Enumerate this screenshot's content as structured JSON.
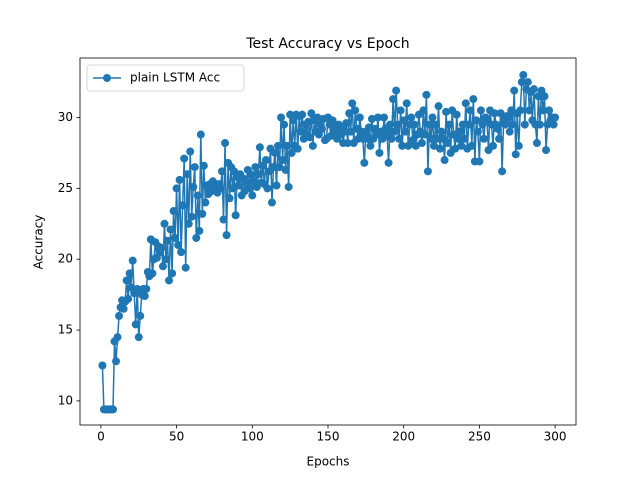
{
  "chart_data": {
    "type": "line",
    "title": "Test Accuracy vs Epoch",
    "xlabel": "Epochs",
    "ylabel": "Accuracy",
    "x": [
      1,
      2,
      3,
      4,
      5,
      6,
      7,
      8,
      9,
      10,
      11,
      12,
      13,
      14,
      15,
      16,
      17,
      18,
      19,
      20,
      21,
      22,
      23,
      24,
      25,
      26,
      27,
      28,
      29,
      30,
      31,
      32,
      33,
      34,
      35,
      36,
      37,
      38,
      39,
      40,
      41,
      42,
      43,
      44,
      45,
      46,
      47,
      48,
      49,
      50,
      51,
      52,
      53,
      54,
      55,
      56,
      57,
      58,
      59,
      60,
      61,
      62,
      63,
      64,
      65,
      66,
      67,
      68,
      69,
      70,
      71,
      72,
      73,
      74,
      75,
      76,
      77,
      78,
      79,
      80,
      81,
      82,
      83,
      84,
      85,
      86,
      87,
      88,
      89,
      90,
      91,
      92,
      93,
      94,
      95,
      96,
      97,
      98,
      99,
      100,
      101,
      102,
      103,
      104,
      105,
      106,
      107,
      108,
      109,
      110,
      111,
      112,
      113,
      114,
      115,
      116,
      117,
      118,
      119,
      120,
      121,
      122,
      123,
      124,
      125,
      126,
      127,
      128,
      129,
      130,
      131,
      132,
      133,
      134,
      135,
      136,
      137,
      138,
      139,
      140,
      141,
      142,
      143,
      144,
      145,
      146,
      147,
      148,
      149,
      150,
      151,
      152,
      153,
      154,
      155,
      156,
      157,
      158,
      159,
      160,
      161,
      162,
      163,
      164,
      165,
      166,
      167,
      168,
      169,
      170,
      171,
      172,
      173,
      174,
      175,
      176,
      177,
      178,
      179,
      180,
      181,
      182,
      183,
      184,
      185,
      186,
      187,
      188,
      189,
      190,
      191,
      192,
      193,
      194,
      195,
      196,
      197,
      198,
      199,
      200,
      201,
      202,
      203,
      204,
      205,
      206,
      207,
      208,
      209,
      210,
      211,
      212,
      213,
      214,
      215,
      216,
      217,
      218,
      219,
      220,
      221,
      222,
      223,
      224,
      225,
      226,
      227,
      228,
      229,
      230,
      231,
      232,
      233,
      234,
      235,
      236,
      237,
      238,
      239,
      240,
      241,
      242,
      243,
      244,
      245,
      246,
      247,
      248,
      249,
      250,
      251,
      252,
      253,
      254,
      255,
      256,
      257,
      258,
      259,
      260,
      261,
      262,
      263,
      264,
      265,
      266,
      267,
      268,
      269,
      270,
      271,
      272,
      273,
      274,
      275,
      276,
      277,
      278,
      279,
      280,
      281,
      282,
      283,
      284,
      285,
      286,
      287,
      288,
      289,
      290,
      291,
      292,
      293,
      294,
      295,
      296,
      297,
      298,
      299,
      300
    ],
    "series": [
      {
        "name": "plain LSTM Acc",
        "color": "#1f77b4",
        "values": [
          12.5,
          9.4,
          9.4,
          9.4,
          9.4,
          9.4,
          9.4,
          9.4,
          14.2,
          12.8,
          14.5,
          16.0,
          16.6,
          17.1,
          16.5,
          17.0,
          18.5,
          17.2,
          19.0,
          18.0,
          19.9,
          17.6,
          15.4,
          17.9,
          14.5,
          16.0,
          17.5,
          17.9,
          17.4,
          17.9,
          19.1,
          18.8,
          21.4,
          19.0,
          20.0,
          21.2,
          20.1,
          20.9,
          20.5,
          20.8,
          19.5,
          22.5,
          20.0,
          21.3,
          18.5,
          22.1,
          19.0,
          23.4,
          21.5,
          25.0,
          21.0,
          25.6,
          20.5,
          23.8,
          27.1,
          19.4,
          26.0,
          22.5,
          27.6,
          23.0,
          25.1,
          26.5,
          21.5,
          24.5,
          22.0,
          28.8,
          23.2,
          26.6,
          24.0,
          25.2,
          24.6,
          25.3,
          24.8,
          25.5,
          24.9,
          25.1,
          24.7,
          25.3,
          25.0,
          26.2,
          22.8,
          28.2,
          21.7,
          26.8,
          24.3,
          26.5,
          25.0,
          26.2,
          23.1,
          25.8,
          25.2,
          26.0,
          24.5,
          25.7,
          24.8,
          25.5,
          26.3,
          25.0,
          26.0,
          24.5,
          25.5,
          26.5,
          25.1,
          26.0,
          27.9,
          25.4,
          26.6,
          25.3,
          27.0,
          25.0,
          26.2,
          27.8,
          24.0,
          26.5,
          27.5,
          25.2,
          28.0,
          26.5,
          30.0,
          27.0,
          29.5,
          26.3,
          28.0,
          25.1,
          30.2,
          27.5,
          29.8,
          28.0,
          30.2,
          27.8,
          30.1,
          29.0,
          30.2,
          28.5,
          29.5,
          28.8,
          29.7,
          28.6,
          30.3,
          28.0,
          29.8,
          29.0,
          30.0,
          28.8,
          29.5,
          29.2,
          29.9,
          28.4,
          28.5,
          30.0,
          29.5,
          28.7,
          29.8,
          29.0,
          29.3,
          28.5,
          29.5,
          28.8,
          29.2,
          28.2,
          29.0,
          29.6,
          28.2,
          30.3,
          29.0,
          31.0,
          28.2,
          30.5,
          29.2,
          28.5,
          30.0,
          29.0,
          28.5,
          26.8,
          29.0,
          28.5,
          29.3,
          28.0,
          29.9,
          28.5,
          29.2,
          28.8,
          30.0,
          27.5,
          29.0,
          28.5,
          30.0,
          29.2,
          28.8,
          26.8,
          29.5,
          28.5,
          31.3,
          29.0,
          31.9,
          29.5,
          28.5,
          30.5,
          28.0,
          29.8,
          29.0,
          31.0,
          28.0,
          29.5,
          30.0,
          28.4,
          29.5,
          28.0,
          28.8,
          30.2,
          29.0,
          28.2,
          30.5,
          28.8,
          31.6,
          26.2,
          29.5,
          28.5,
          30.0,
          28.0,
          29.5,
          28.5,
          30.8,
          27.8,
          29.0,
          28.5,
          27.0,
          30.4,
          28.2,
          29.5,
          27.5,
          30.5,
          28.8,
          27.8,
          30.2,
          28.5,
          29.0,
          28.0,
          29.5,
          28.5,
          31.0,
          27.8,
          29.5,
          30.5,
          28.0,
          31.3,
          26.9,
          29.8,
          29.0,
          26.9,
          30.5,
          29.5,
          28.5,
          30.0,
          29.8,
          27.7,
          30.5,
          29.5,
          28.0,
          30.3,
          29.5,
          29.2,
          28.5,
          30.3,
          26.2,
          29.8,
          29.5,
          30.1,
          30.0,
          29.0,
          30.5,
          29.5,
          31.9,
          27.4,
          30.3,
          28.0,
          30.5,
          32.5,
          33.0,
          29.5,
          32.0,
          32.5,
          30.5,
          31.8,
          29.8,
          32.0,
          29.5,
          28.2,
          31.5,
          29.5,
          31.9,
          30.5,
          31.5,
          27.7,
          29.5,
          30.5,
          29.8,
          30.0,
          29.5,
          30.0
        ]
      }
    ],
    "xlim": [
      -13.8,
      313.8
    ],
    "ylim": [
      8.3,
      34.2
    ],
    "xticks": [
      0,
      50,
      100,
      150,
      200,
      250,
      300
    ],
    "yticks": [
      10,
      15,
      20,
      25,
      30
    ],
    "legend": "upper left",
    "grid": false
  }
}
